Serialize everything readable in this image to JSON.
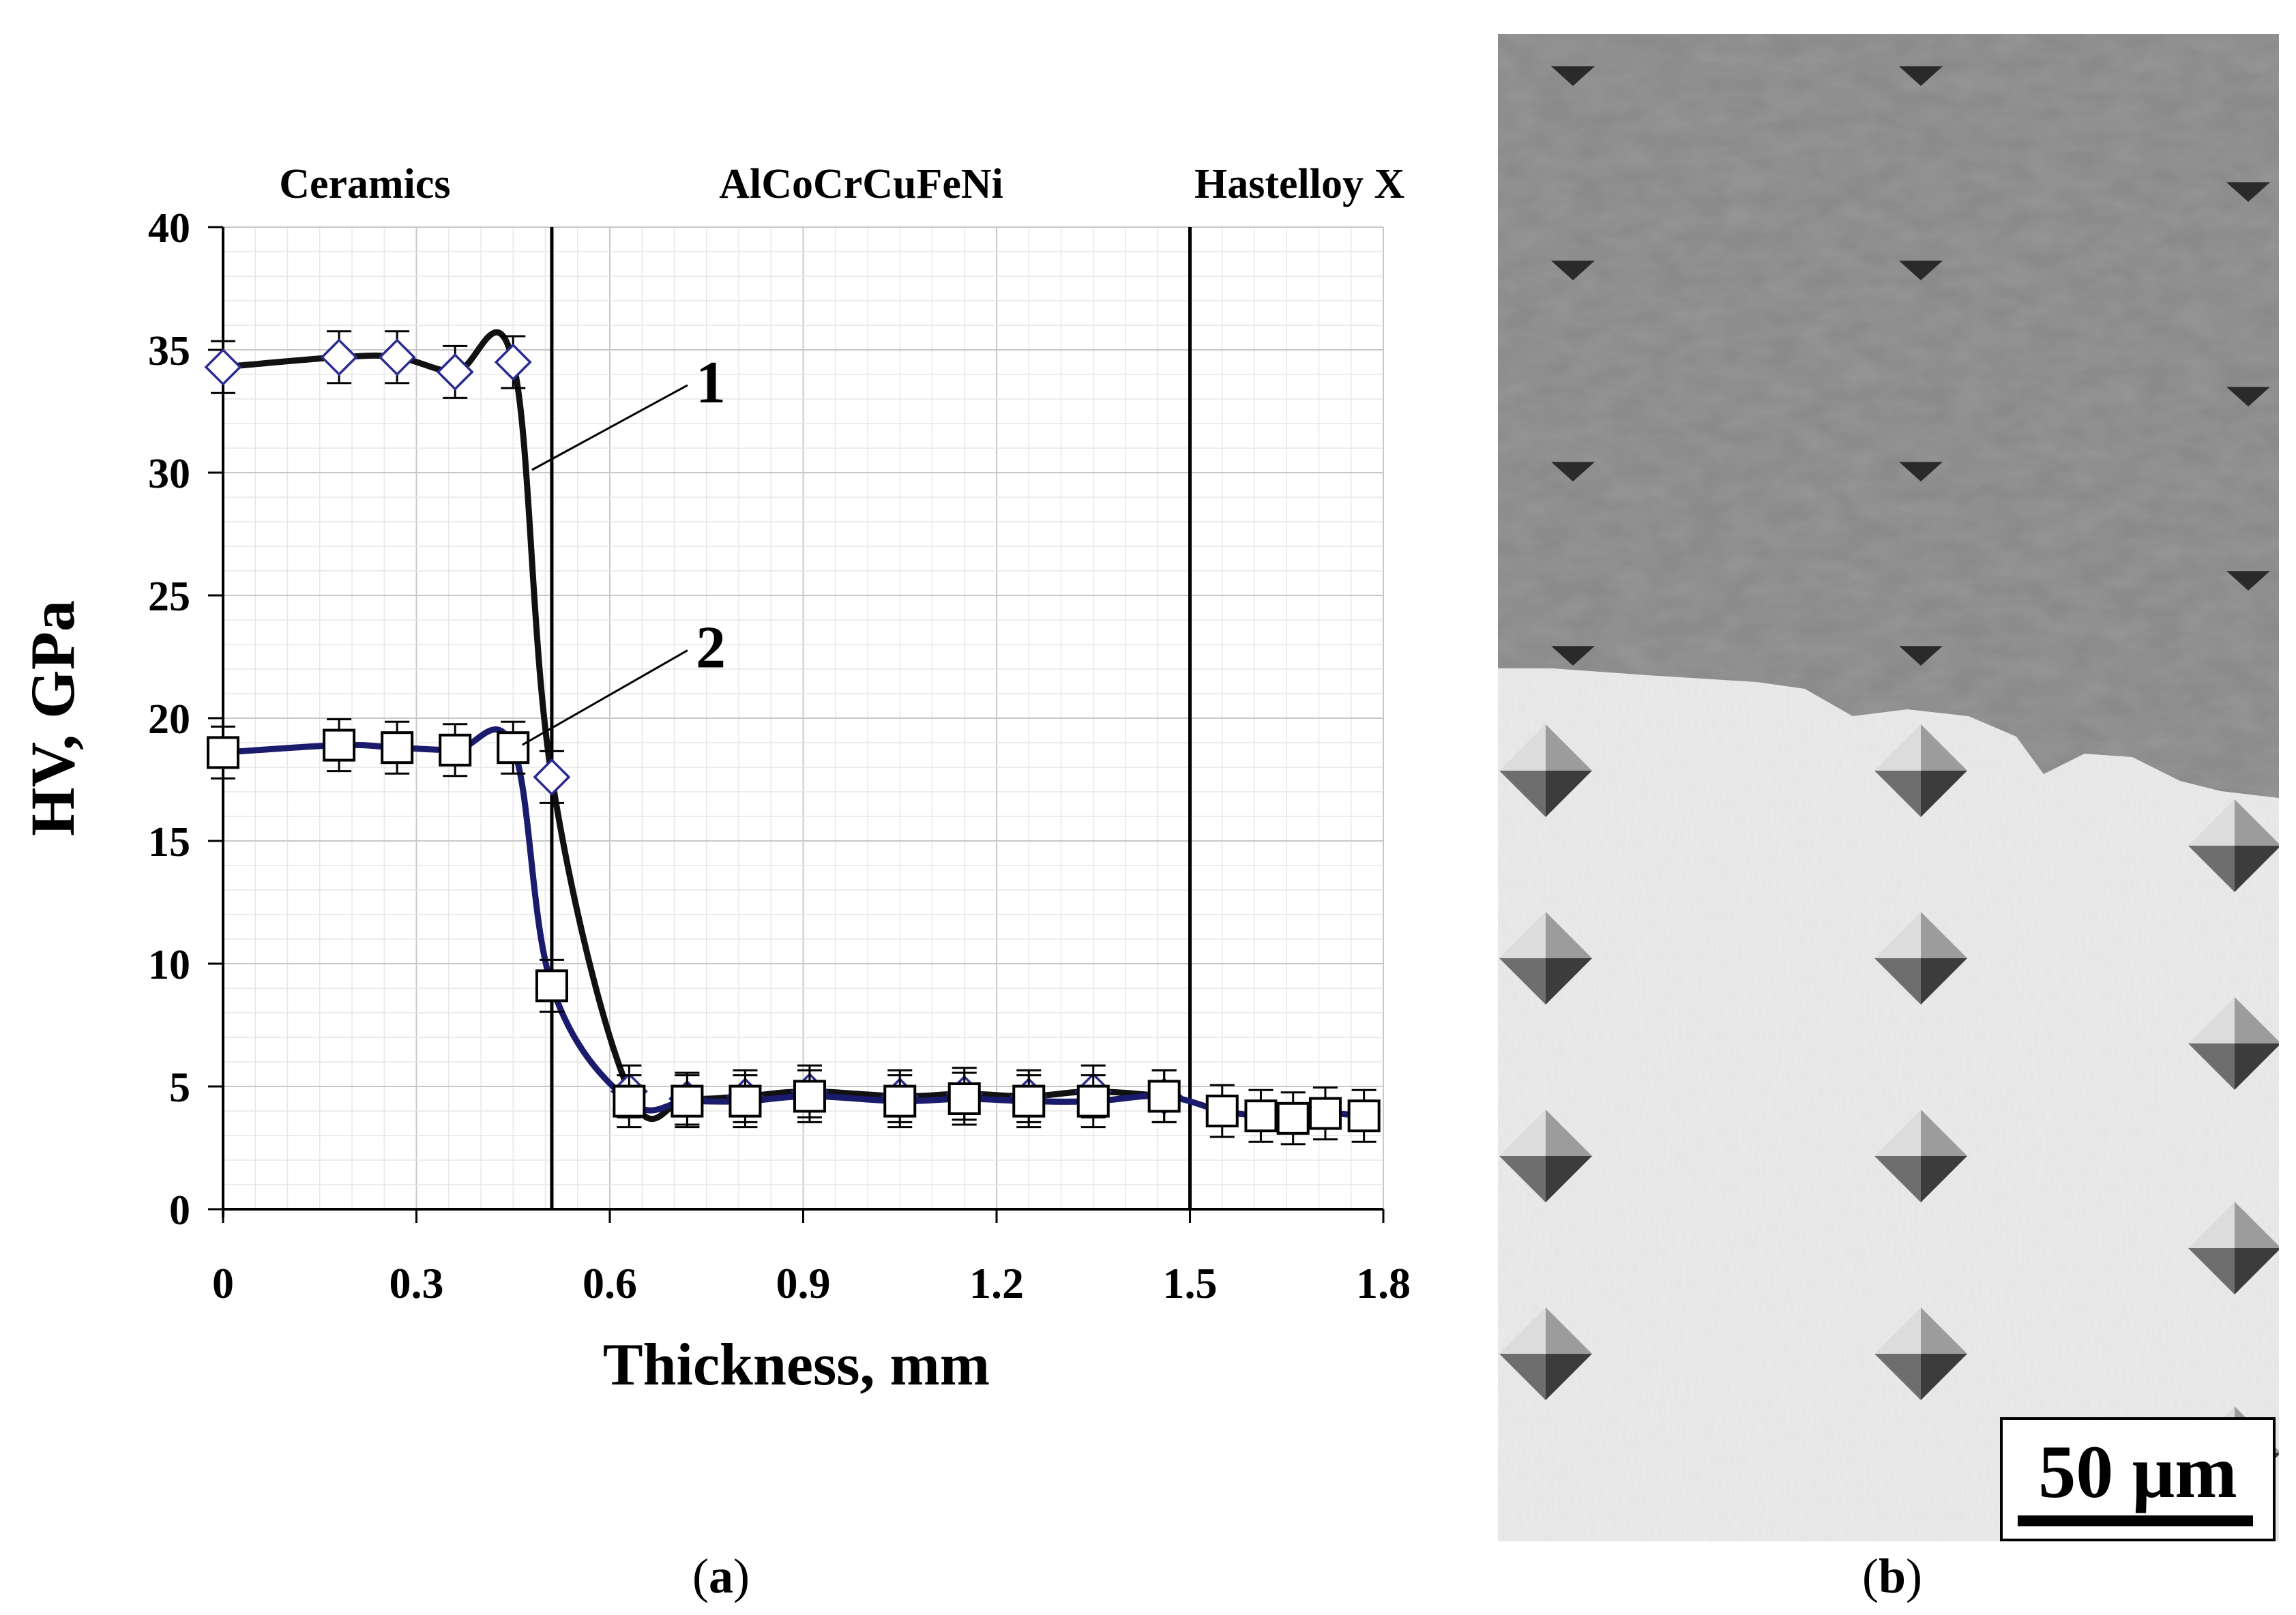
{
  "chart_data": {
    "type": "line",
    "xlabel": "Thickness, mm",
    "ylabel": "HV, GPa",
    "xlim": [
      0,
      1.8
    ],
    "ylim": [
      0,
      40
    ],
    "x_ticks": [
      "0",
      "0.3",
      "0.6",
      "0.9",
      "1.2",
      "1.5",
      "1.8"
    ],
    "y_ticks": [
      "0",
      "5",
      "10",
      "15",
      "20",
      "25",
      "30",
      "35",
      "40"
    ],
    "grid": true,
    "zones": [
      {
        "label": "Ceramics",
        "x_center": 0.22
      },
      {
        "label": "AlCoCrCuFeNi",
        "x_center": 0.99
      },
      {
        "label": "Hastelloy X",
        "x_center": 1.67
      }
    ],
    "boundaries": [
      0.51,
      1.5
    ],
    "series": [
      {
        "name": "1",
        "marker": "diamond",
        "line_color": "#111111",
        "marker_color": "#2a2a8f",
        "label_pos": [
          0.71,
          33.7
        ],
        "x": [
          0.0,
          0.18,
          0.27,
          0.36,
          0.45,
          0.51,
          0.63,
          0.72,
          0.81,
          0.91,
          1.05,
          1.15,
          1.25,
          1.35,
          1.46
        ],
        "y": [
          34.3,
          34.7,
          34.7,
          34.1,
          34.5,
          17.6,
          4.8,
          4.5,
          4.6,
          4.8,
          4.6,
          4.7,
          4.6,
          4.8,
          4.6
        ]
      },
      {
        "name": "2",
        "marker": "square",
        "line_color": "#1b1b6e",
        "marker_color": "#000000",
        "label_pos": [
          0.71,
          22.9
        ],
        "x": [
          0.0,
          0.18,
          0.27,
          0.36,
          0.45,
          0.51,
          0.63,
          0.72,
          0.81,
          0.91,
          1.05,
          1.15,
          1.25,
          1.35,
          1.46,
          1.55,
          1.61,
          1.66,
          1.71,
          1.77
        ],
        "y": [
          18.6,
          18.9,
          18.8,
          18.7,
          18.8,
          9.1,
          4.4,
          4.4,
          4.4,
          4.6,
          4.4,
          4.5,
          4.4,
          4.4,
          4.6,
          4.0,
          3.8,
          3.7,
          3.9,
          3.8
        ]
      }
    ]
  },
  "micrograph": {
    "scale_bar": "50 μm"
  },
  "captions": {
    "a_open": "(",
    "a": "a",
    "a_close": ")",
    "b_open": "(",
    "b": "b",
    "b_close": ")"
  }
}
